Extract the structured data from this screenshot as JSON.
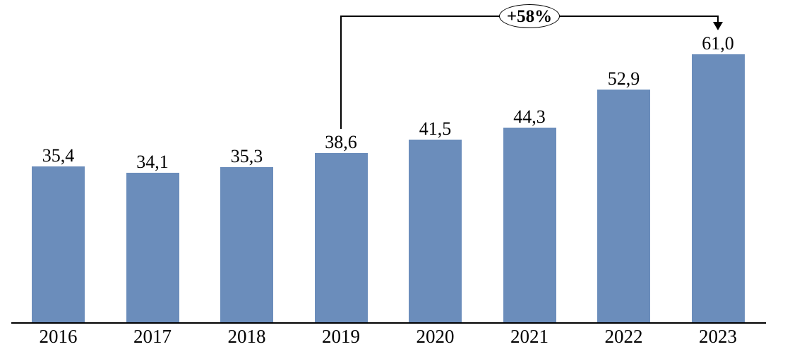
{
  "chart_data": {
    "type": "bar",
    "categories": [
      "2016",
      "2017",
      "2018",
      "2019",
      "2020",
      "2021",
      "2022",
      "2023"
    ],
    "values": [
      35.4,
      34.1,
      35.3,
      38.6,
      41.5,
      44.3,
      52.9,
      61.0
    ],
    "value_labels": [
      "35,4",
      "34,1",
      "35,3",
      "38,6",
      "41,5",
      "44,3",
      "52,9",
      "61,0"
    ],
    "title": "",
    "xlabel": "",
    "ylabel": "",
    "ylim": [
      0,
      65
    ],
    "grid": false,
    "legend": "none",
    "bar_color": "#6B8DBB",
    "axis_color": "#000000",
    "background_color": "#FFFFFF",
    "annotation": {
      "label": "+58%",
      "from_category": "2019",
      "to_category": "2023"
    }
  }
}
